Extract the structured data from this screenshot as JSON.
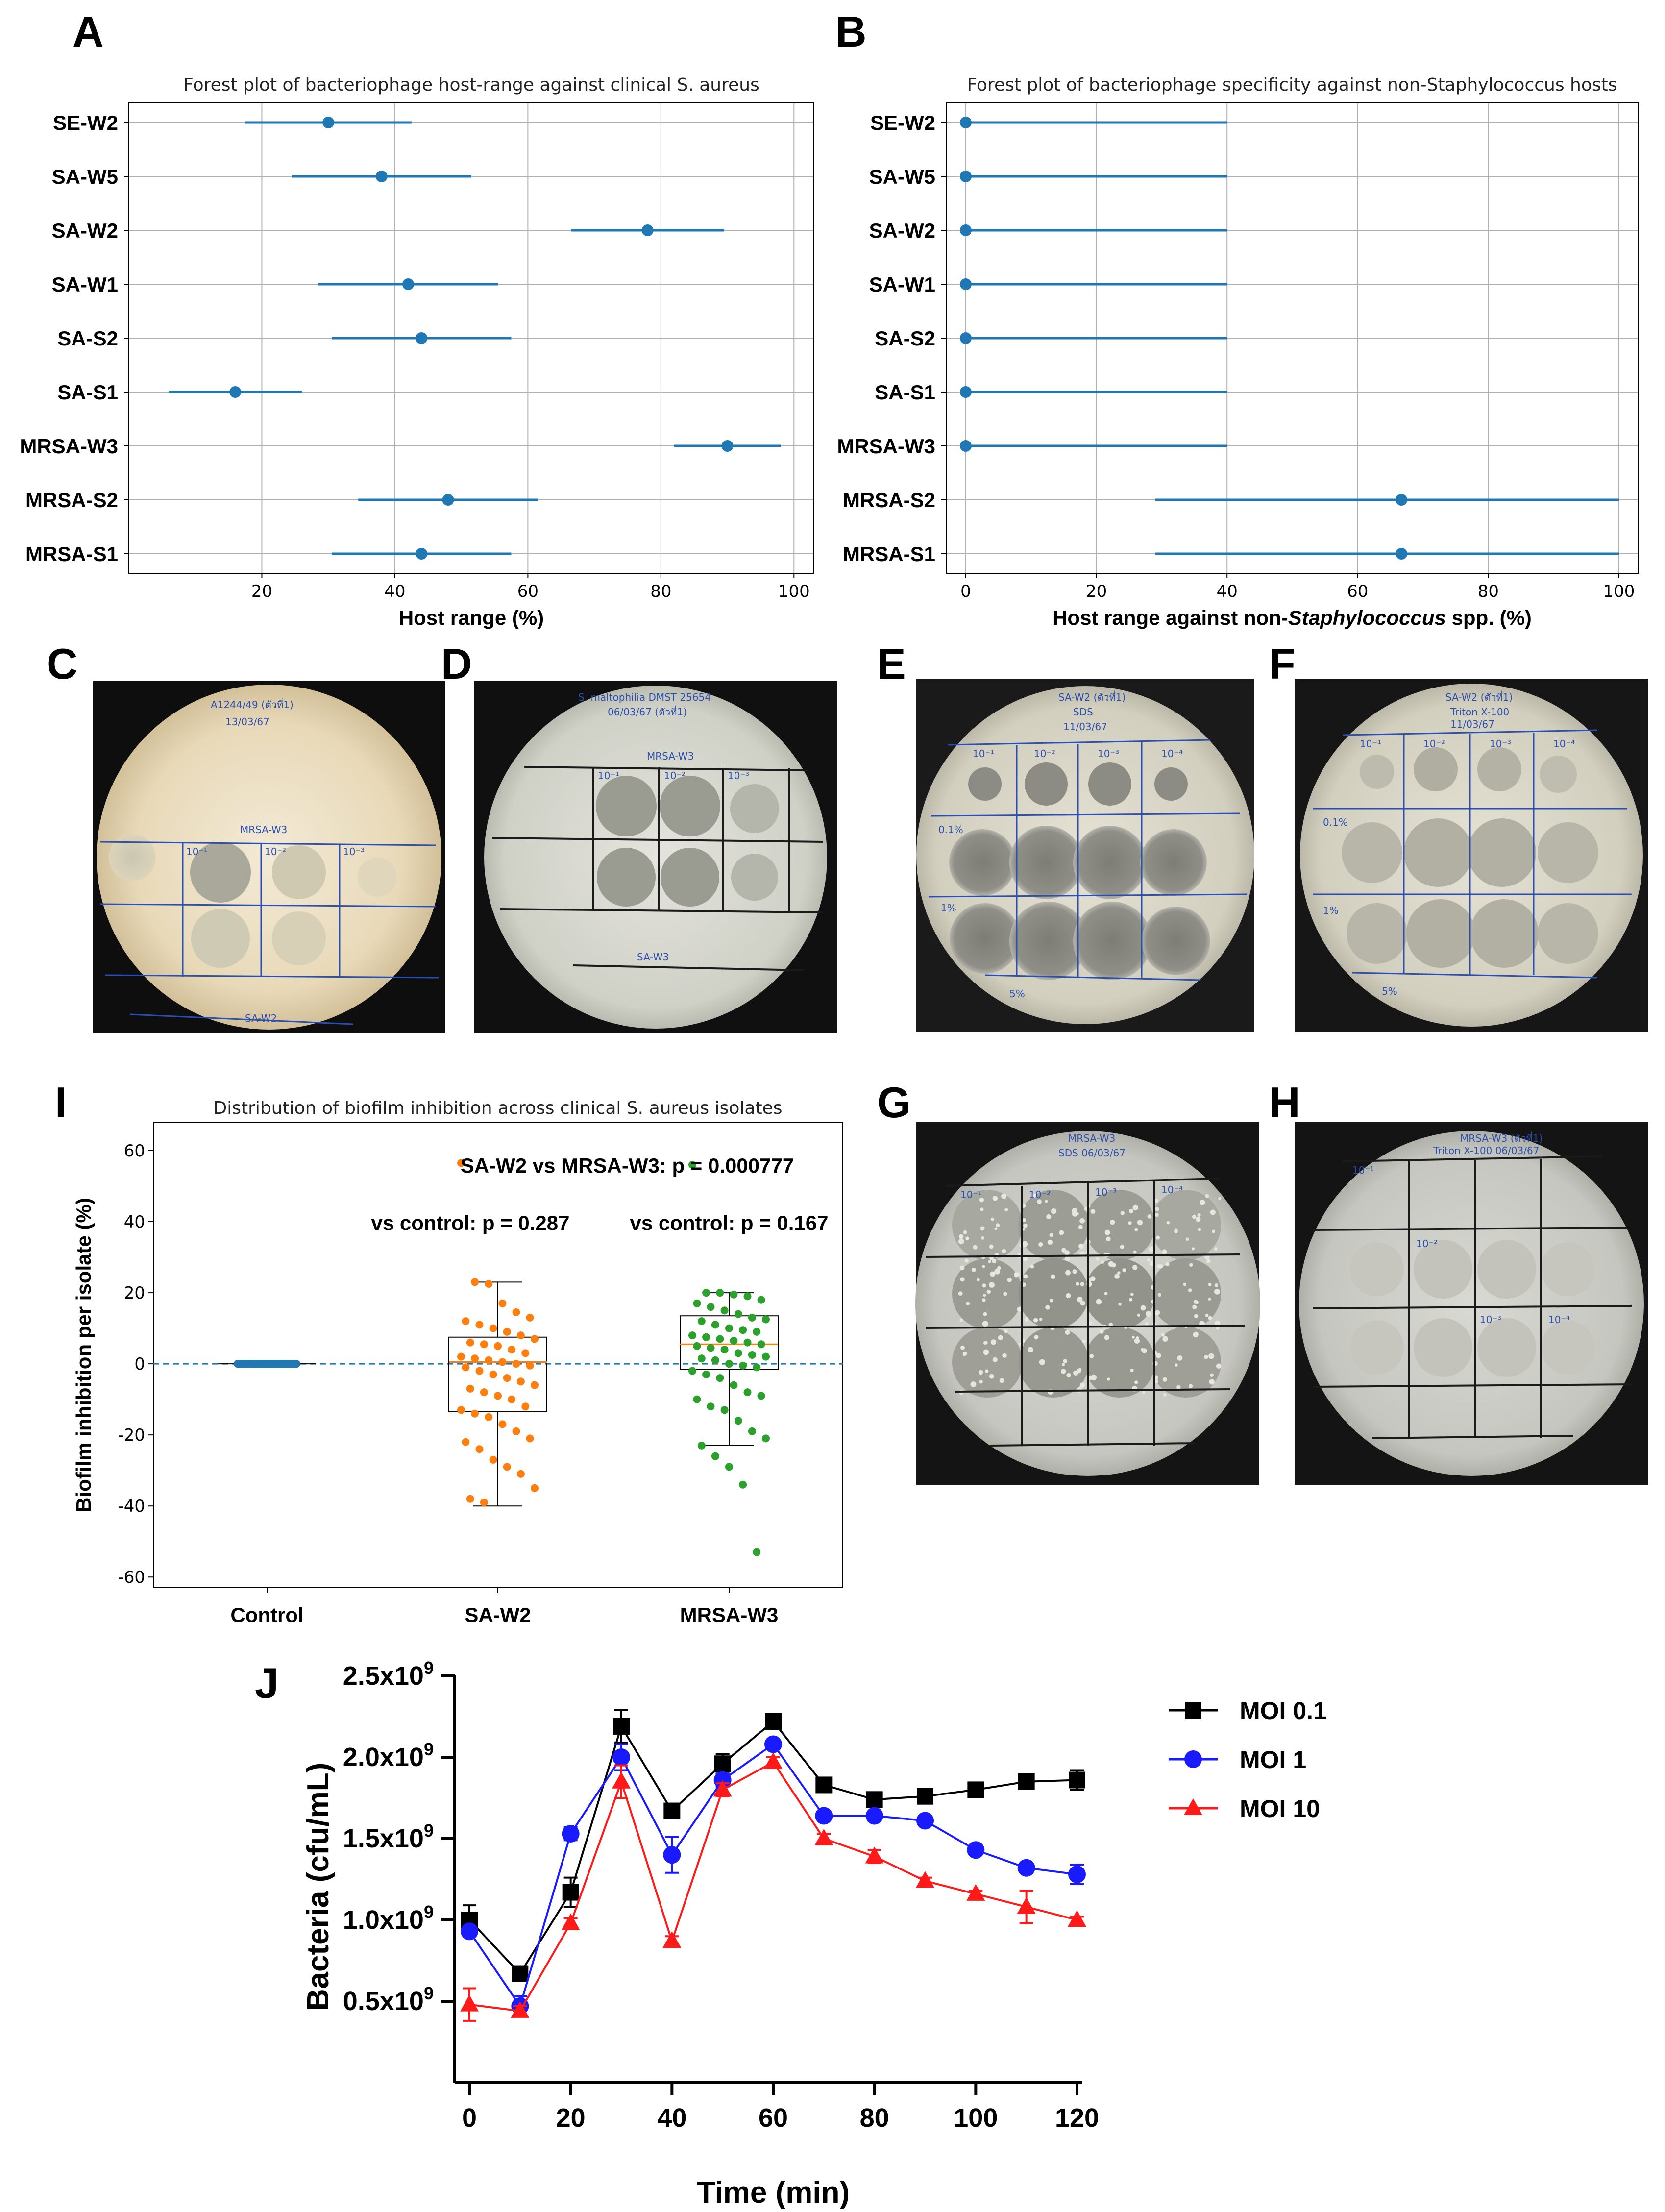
{
  "panels": {
    "A": "A",
    "B": "B",
    "C": "C",
    "D": "D",
    "E": "E",
    "F": "F",
    "G": "G",
    "H": "H",
    "I": "I",
    "J": "J"
  },
  "colors": {
    "forest": "#1f77b4",
    "orange": "#ff7f0e",
    "green": "#2ca02c",
    "moi01": "#000000",
    "moi1": "#1a1aff",
    "moi10": "#ff1a1a"
  },
  "chart_data": [
    {
      "id": "A",
      "type": "scatter",
      "subtype": "forest",
      "title": "Forest plot of bacteriophage host-range against clinical S. aureus",
      "xlabel": "Host range (%)",
      "xlim": [
        0,
        103
      ],
      "xticks": [
        20,
        40,
        60,
        80,
        100
      ],
      "categories": [
        "SE-W2",
        "SA-W5",
        "SA-W2",
        "SA-W1",
        "SA-S2",
        "SA-S1",
        "MRSA-W3",
        "MRSA-S2",
        "MRSA-S1"
      ],
      "values": [
        30,
        38,
        78,
        42,
        44,
        16,
        90,
        48,
        44
      ],
      "ci_low": [
        17.5,
        24.5,
        66.5,
        28.5,
        30.5,
        6,
        82,
        34.5,
        30.5
      ],
      "ci_high": [
        42.5,
        51.5,
        89.5,
        55.5,
        57.5,
        26,
        98,
        61.5,
        57.5
      ]
    },
    {
      "id": "B",
      "type": "scatter",
      "subtype": "forest",
      "title": "Forest plot of bacteriophage specificity against non-Staphylococcus hosts",
      "xlabel_parts": [
        "Host range against non-",
        "Staphylococcus",
        " spp. (%)"
      ],
      "xlim": [
        -3,
        103
      ],
      "xticks": [
        0,
        20,
        40,
        60,
        80,
        100
      ],
      "categories": [
        "SE-W2",
        "SA-W5",
        "SA-W2",
        "SA-W1",
        "SA-S2",
        "SA-S1",
        "MRSA-W3",
        "MRSA-S2",
        "MRSA-S1"
      ],
      "values": [
        0,
        0,
        0,
        0,
        0,
        0,
        0,
        66.7,
        66.7
      ],
      "ci_low": [
        0,
        0,
        0,
        0,
        0,
        0,
        0,
        29,
        29
      ],
      "ci_high": [
        40,
        40,
        40,
        40,
        40,
        40,
        40,
        100,
        100
      ]
    },
    {
      "id": "I",
      "type": "scatter",
      "subtype": "box-strip",
      "title": "Distribution of biofilm inhibition across clinical S. aureus isolates",
      "ylabel": "Biofilm inhibition per isolate (%)",
      "ylim": [
        -63,
        68
      ],
      "yticks": [
        -60,
        -40,
        -20,
        0,
        20,
        40,
        60
      ],
      "categories": [
        "Control",
        "SA-W2",
        "MRSA-W3"
      ],
      "annotations": {
        "top": "SA-W2 vs MRSA-W3: p = 0.000777",
        "sa_w2": "vs control: p = 0.287",
        "mrsa_w3": "vs control: p = 0.167"
      },
      "boxes": [
        {
          "name": "Control",
          "q1": 0,
          "median": 0,
          "q3": 0,
          "whisker_low": 0,
          "whisker_high": 0
        },
        {
          "name": "SA-W2",
          "q1": -13.5,
          "median": 0.5,
          "q3": 7.5,
          "whisker_low": -40,
          "whisker_high": 23
        },
        {
          "name": "MRSA-W3",
          "q1": -1.5,
          "median": 5.5,
          "q3": 13.5,
          "whisker_low": -23,
          "whisker_high": 20
        }
      ],
      "points": {
        "Control": [
          0,
          0,
          0,
          0,
          0,
          0,
          0,
          0,
          0,
          0,
          0,
          0,
          0,
          0,
          0,
          0,
          0,
          0,
          0,
          0,
          0,
          0,
          0,
          0,
          0,
          0,
          0,
          0,
          0,
          0
        ],
        "SA-W2": [
          56.5,
          23,
          22.5,
          17,
          14.5,
          13,
          12,
          11,
          10,
          9,
          8,
          7,
          6,
          5.5,
          5,
          4,
          3,
          2,
          1.5,
          1,
          0.5,
          0,
          -0.5,
          -1,
          -2,
          -3,
          -4,
          -5,
          -6,
          -7,
          -8,
          -9,
          -10,
          -12,
          -13,
          -14,
          -15,
          -17,
          -19,
          -21,
          -22,
          -24,
          -27,
          -29,
          -31,
          -35,
          -38,
          -39
        ],
        "MRSA-W3": [
          56,
          20,
          20,
          19.5,
          19,
          18,
          17,
          16,
          15,
          14,
          13,
          12.5,
          12,
          11,
          10,
          9.5,
          9,
          8,
          7.5,
          7,
          6.5,
          6,
          5.5,
          5,
          4.5,
          4,
          3,
          2.5,
          2,
          1.5,
          1,
          0,
          -0.5,
          -1,
          -2,
          -3,
          -4,
          -6,
          -8,
          -9,
          -10,
          -12,
          -13,
          -16,
          -19,
          -21,
          -23,
          -26,
          -29,
          -34,
          -53
        ]
      }
    },
    {
      "id": "J",
      "type": "line",
      "xlabel": "Time (min)",
      "ylabel": "Bacteria (cfu/mL)",
      "xlim": [
        0,
        120
      ],
      "ylim": [
        0,
        2.5
      ],
      "xticks": [
        0,
        20,
        40,
        60,
        80,
        100,
        120
      ],
      "yticks": [
        0.5,
        1.0,
        1.5,
        2.0,
        2.5
      ],
      "ytick_base": [
        "0.5x10",
        "1.0x10",
        "1.5x10",
        "2.0x10",
        "2.5x10"
      ],
      "ytick_exp": "9",
      "x": [
        0,
        10,
        20,
        30,
        40,
        50,
        60,
        70,
        80,
        90,
        100,
        110,
        120
      ],
      "series": [
        {
          "name": "MOI 0.1",
          "color": "#000000",
          "marker": "square",
          "values": [
            1.0,
            0.67,
            1.17,
            2.19,
            1.67,
            1.96,
            2.22,
            1.83,
            1.74,
            1.76,
            1.8,
            1.85,
            1.86
          ],
          "errors": [
            0.09,
            0.03,
            0.09,
            0.1,
            0.03,
            0.06,
            0.03,
            0.03,
            0.03,
            0.03,
            0.03,
            0.03,
            0.06
          ]
        },
        {
          "name": "MOI 1",
          "color": "#1a1aff",
          "marker": "circle",
          "values": [
            0.93,
            0.47,
            1.53,
            2.0,
            1.4,
            1.86,
            2.08,
            1.64,
            1.64,
            1.61,
            1.43,
            1.32,
            1.28
          ],
          "errors": [
            0.03,
            0.06,
            0.04,
            0.08,
            0.11,
            0.04,
            0.03,
            0.03,
            0.03,
            0.02,
            0.02,
            0.02,
            0.06
          ]
        },
        {
          "name": "MOI 10",
          "color": "#ff1a1a",
          "marker": "triangle",
          "values": [
            0.48,
            0.44,
            0.98,
            1.85,
            0.87,
            1.8,
            1.97,
            1.5,
            1.39,
            1.24,
            1.16,
            1.08,
            1.0
          ],
          "errors": [
            0.1,
            0.03,
            0.03,
            0.1,
            0.03,
            0.04,
            0.03,
            0.03,
            0.04,
            0.02,
            0.02,
            0.1,
            0.02
          ]
        }
      ]
    }
  ],
  "photos": {
    "C": [
      "A1244/49 (ตัวที่1)",
      "13/03/67",
      "MRSA-W3",
      "SA-W2",
      "10⁻¹",
      "10⁻²",
      "10⁻³"
    ],
    "D": [
      "S. maltophilia DMST 25654",
      "06/03/67 (ตัวที่1)",
      "MRSA-W3",
      "SA-W3",
      "10⁻¹",
      "10⁻²",
      "10⁻³"
    ],
    "E": [
      "SA-W2 (ตัวที่1)",
      "SDS",
      "11/03/67",
      "10⁻¹",
      "10⁻²",
      "10⁻³",
      "10⁻⁴",
      "0.1%",
      "1%",
      "5%"
    ],
    "F": [
      "SA-W2 (ตัวที่1)",
      "Triton X-100",
      "11/03/67",
      "10⁻¹",
      "10⁻²",
      "10⁻³",
      "10⁻⁴",
      "0.1%",
      "1%",
      "5%"
    ],
    "G": [
      "MRSA-W3",
      "SDS 06/03/67",
      "10⁻¹",
      "10⁻²",
      "10⁻³",
      "10⁻⁴"
    ],
    "H": [
      "MRSA-W3 (ตัวที่1)",
      "Triton X-100 06/03/67",
      "10⁻¹",
      "10⁻²",
      "10⁻³",
      "10⁻⁴"
    ]
  }
}
